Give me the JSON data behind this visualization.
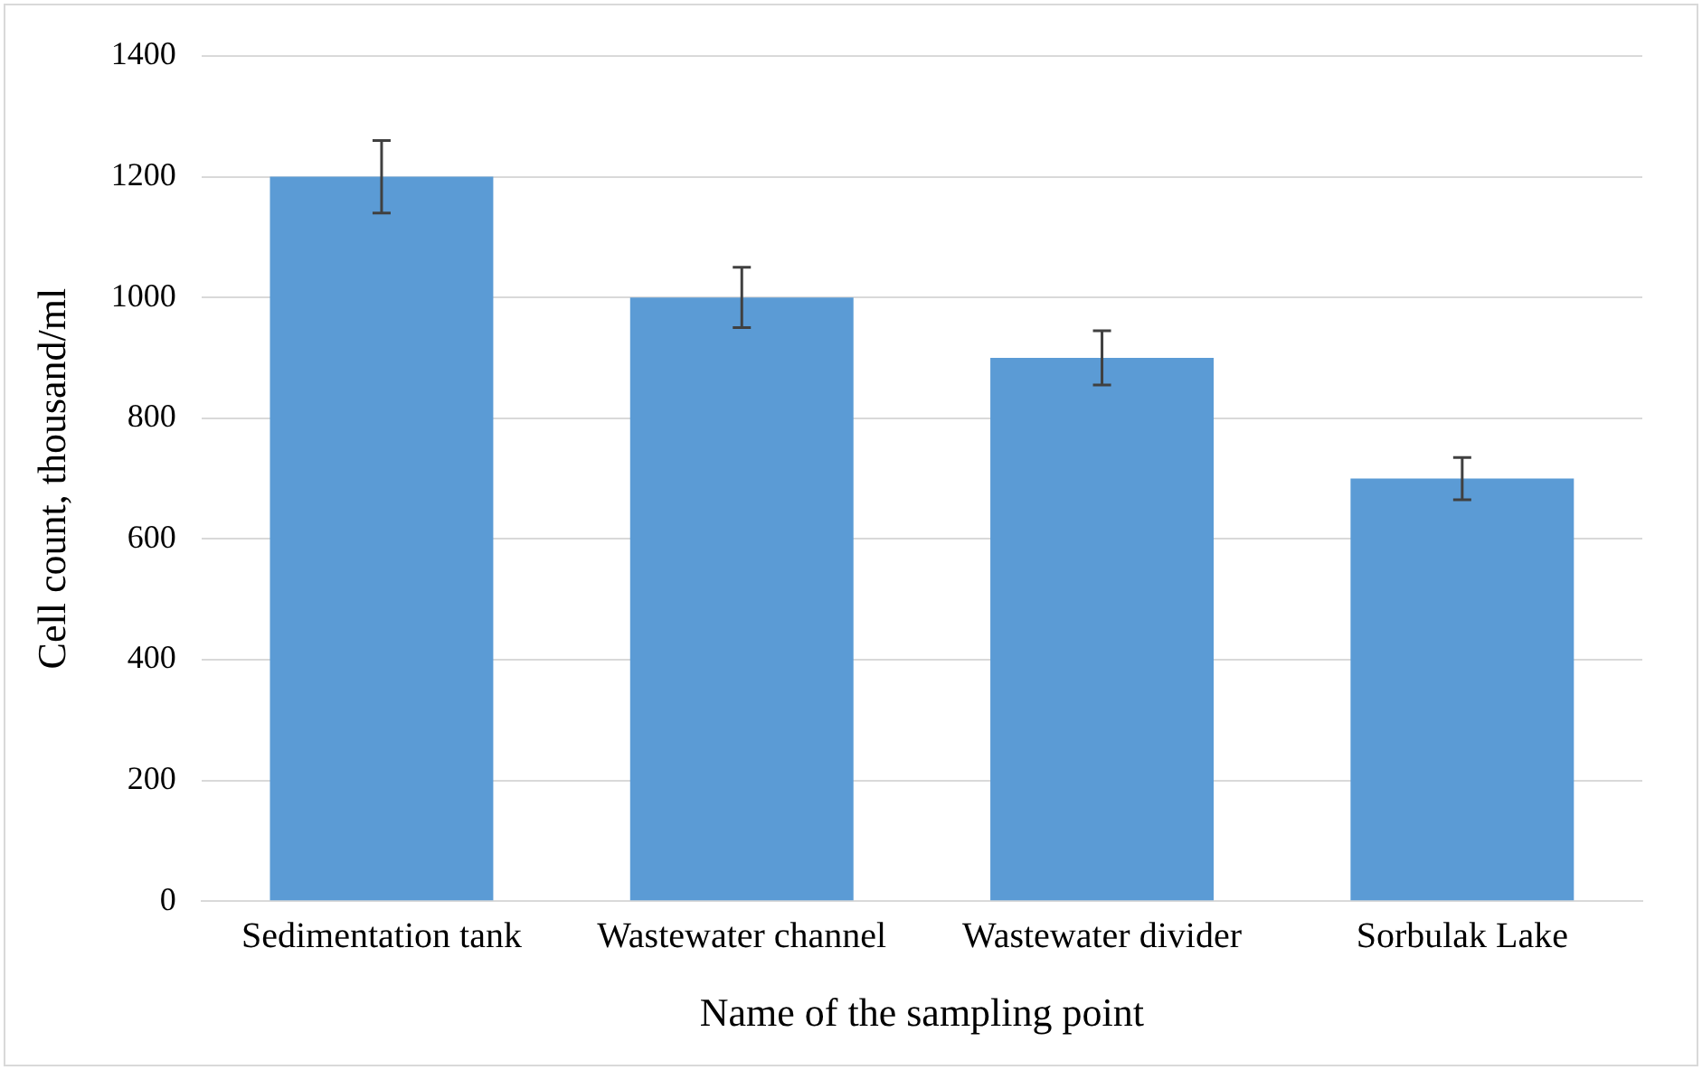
{
  "chart_data": {
    "type": "bar",
    "xlabel": "Name of the sampling point",
    "ylabel": "Cell count, thousand/ml",
    "categories": [
      "Sedimentation tank",
      "Wastewater channel",
      "Wastewater divider",
      "Sorbulak Lake"
    ],
    "values": [
      1200,
      1000,
      900,
      700
    ],
    "errors": [
      60,
      50,
      45,
      35
    ],
    "color": "#5b9bd5",
    "ylim": [
      0,
      1400
    ],
    "yticks": [
      0,
      200,
      400,
      600,
      800,
      1000,
      1200,
      1400
    ],
    "grid": "y",
    "legend": false
  }
}
